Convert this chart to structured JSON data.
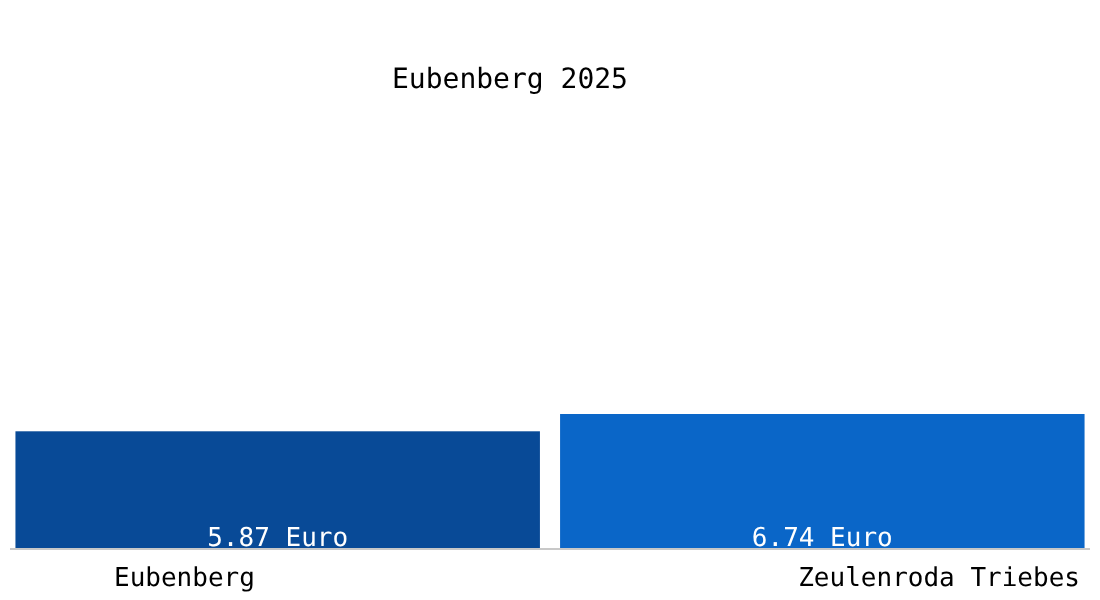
{
  "chart_data": {
    "type": "bar",
    "title": "Eubenberg 2025",
    "categories": [
      "Eubenberg",
      "Zeulenroda Triebes"
    ],
    "values": [
      5.87,
      6.74
    ],
    "colors": [
      "#084a97",
      "#0a66c8"
    ],
    "value_labels": [
      "5.87 Euro",
      "6.74 Euro"
    ]
  }
}
